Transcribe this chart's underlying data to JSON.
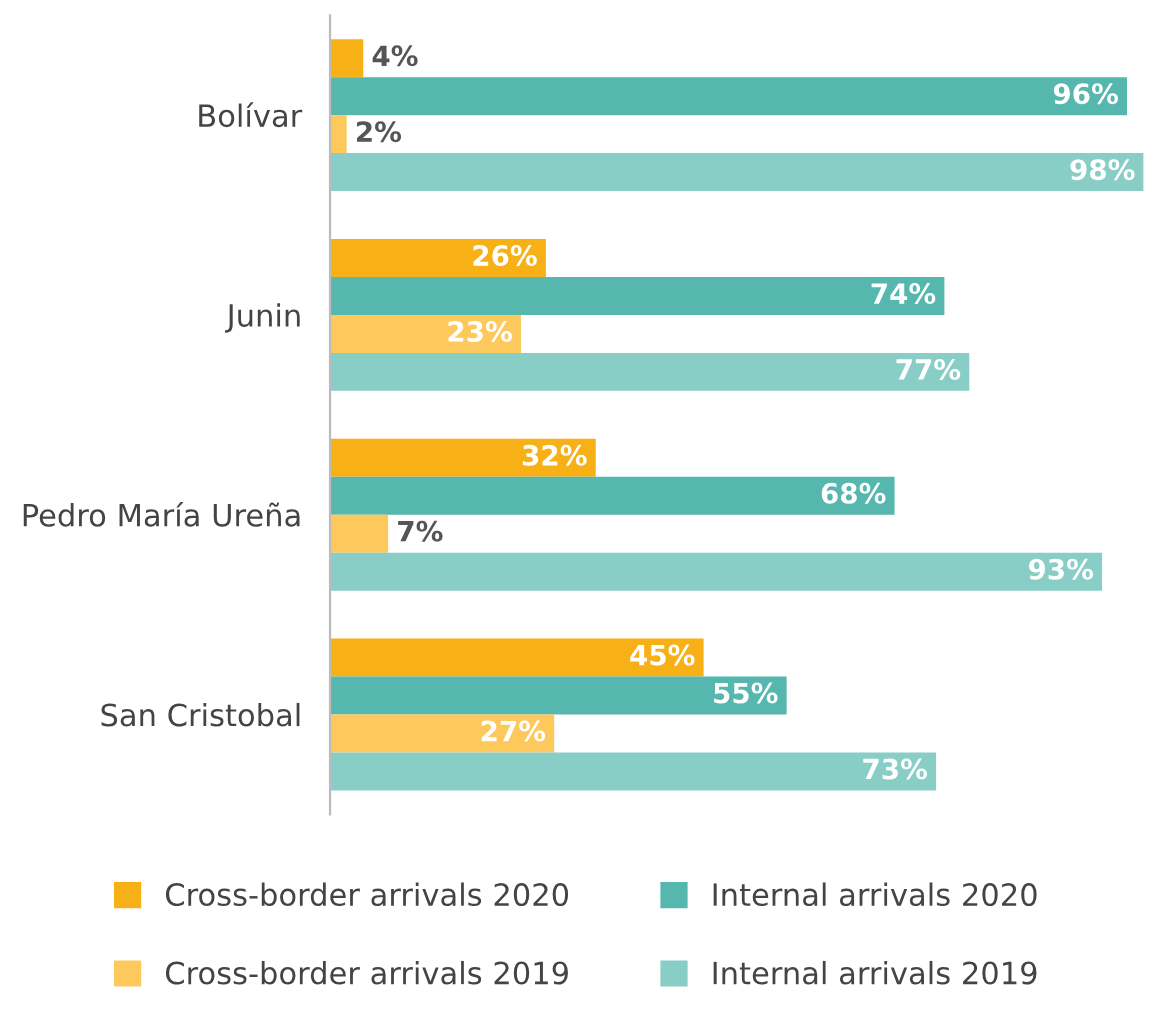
{
  "chart_data": {
    "type": "bar",
    "orientation": "horizontal",
    "legend": "bottom",
    "grid": false,
    "categories": [
      "Bolívar",
      "Junin",
      "Pedro María Ureña",
      "San Cristobal"
    ],
    "series": [
      {
        "name": "Cross-border arrivals 2020",
        "color": "#f7b016",
        "values": [
          4,
          26,
          32,
          45
        ],
        "value_labels": [
          "4%",
          "26%",
          "32%",
          "45%"
        ]
      },
      {
        "name": "Internal arrivals 2020",
        "color": "#55b7ad",
        "values": [
          96,
          74,
          68,
          55
        ],
        "value_labels": [
          "96%",
          "74%",
          "68%",
          "55%"
        ]
      },
      {
        "name": "Cross-border arrivals 2019",
        "color": "#fdc95c",
        "values": [
          2,
          23,
          7,
          27
        ],
        "value_labels": [
          "2%",
          "23%",
          "7%",
          "27%"
        ]
      },
      {
        "name": "Internal arrivals 2019",
        "color": "#88cdc6",
        "values": [
          98,
          77,
          93,
          73
        ],
        "value_labels": [
          "98%",
          "77%",
          "93%",
          "73%"
        ]
      }
    ]
  }
}
